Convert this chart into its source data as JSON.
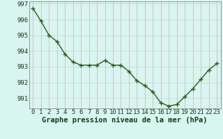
{
  "x": [
    0,
    1,
    2,
    3,
    4,
    5,
    6,
    7,
    8,
    9,
    10,
    11,
    12,
    13,
    14,
    15,
    16,
    17,
    18,
    19,
    20,
    21,
    22,
    23
  ],
  "y": [
    996.7,
    995.9,
    995.0,
    994.6,
    993.8,
    993.3,
    993.1,
    993.1,
    993.1,
    993.4,
    993.1,
    993.1,
    992.7,
    992.1,
    991.8,
    991.4,
    990.7,
    990.5,
    990.6,
    991.1,
    991.6,
    992.2,
    992.8,
    993.2
  ],
  "line_color": "#2d5a1b",
  "marker": "+",
  "marker_size": 4,
  "marker_color": "#2d5a1b",
  "bg_color": "#d8f5f0",
  "grid_color_v": "#d0b0b0",
  "grid_color_h": "#c0d8d0",
  "border_color": "#888888",
  "xlabel": "Graphe pression niveau de la mer (hPa)",
  "xlabel_fontsize": 7.5,
  "xlabel_color": "#1a3a1a",
  "tick_fontsize": 6.5,
  "tick_color": "#1a3a1a",
  "ylim_min": 990.35,
  "ylim_max": 997.15,
  "yticks": [
    991,
    992,
    993,
    994,
    995,
    996,
    997
  ],
  "xticks": [
    0,
    1,
    2,
    3,
    4,
    5,
    6,
    7,
    8,
    9,
    10,
    11,
    12,
    13,
    14,
    15,
    16,
    17,
    18,
    19,
    20,
    21,
    22,
    23
  ],
  "line_width": 1.0
}
